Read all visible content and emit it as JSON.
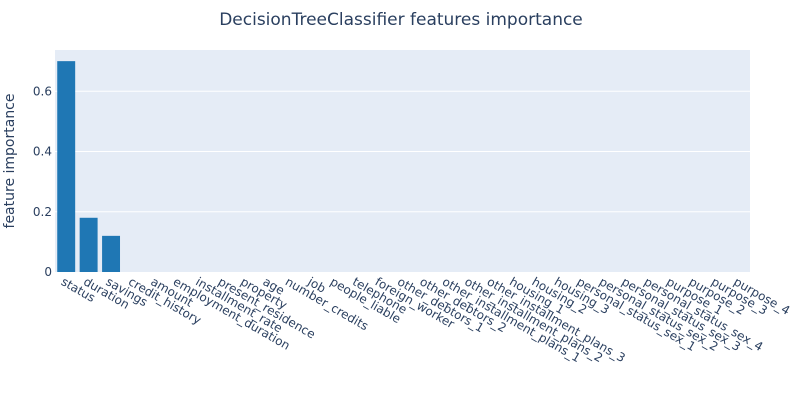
{
  "chart_data": {
    "type": "bar",
    "title": "DecisionTreeClassifier features importance",
    "xlabel": "",
    "ylabel": "feature importance",
    "categories": [
      "status",
      "duration",
      "savings",
      "credit_history",
      "amount",
      "employment_duration",
      "installment_rate",
      "present_residence",
      "property",
      "age",
      "number_credits",
      "job",
      "people_liable",
      "telephone",
      "foreign_worker",
      "other_debtors_1",
      "other_debtors_2",
      "other_installment_plans_1",
      "other_installment_plans_2",
      "other_installment_plans_3",
      "housing_1",
      "housing_2",
      "housing_3",
      "personal_status_sex_1",
      "personal_status_sex_2",
      "personal_status_sex_3",
      "personal_status_sex_4",
      "purpose_1",
      "purpose_2",
      "purpose_3",
      "purpose_4"
    ],
    "values": [
      0.7,
      0.18,
      0.12,
      0,
      0,
      0,
      0,
      0,
      0,
      0,
      0,
      0,
      0,
      0,
      0,
      0,
      0,
      0,
      0,
      0,
      0,
      0,
      0,
      0,
      0,
      0,
      0,
      0,
      0,
      0,
      0
    ],
    "ylim": [
      0,
      0.737
    ],
    "yticks": [
      0,
      0.2,
      0.4,
      0.6
    ],
    "grid": true,
    "bar_color": "#1f77b4",
    "plot_bg": "#e5ecf6"
  }
}
